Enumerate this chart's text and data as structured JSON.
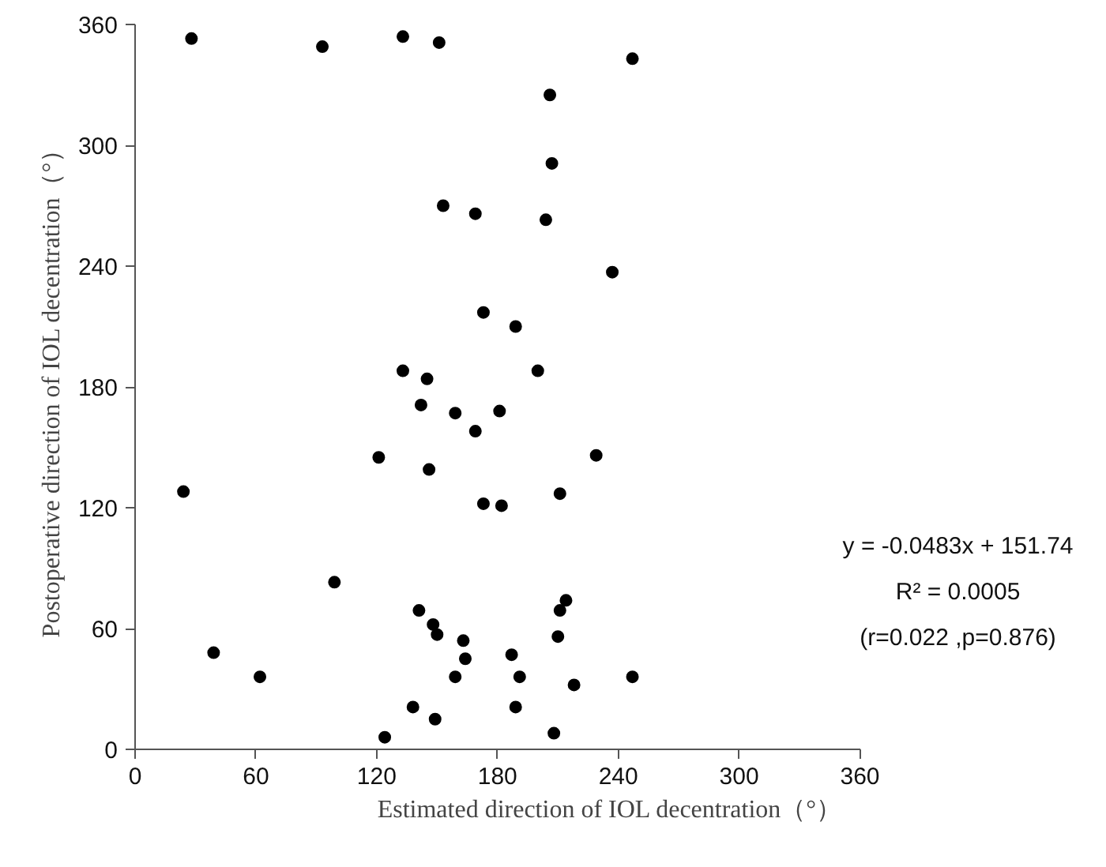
{
  "chart_data": {
    "type": "scatter",
    "xlabel": "Estimated direction of IOL decentration（°）",
    "ylabel": "Postoperative direction of IOL decentration（°）",
    "xlim": [
      0,
      360
    ],
    "ylim": [
      0,
      360
    ],
    "xticks": [
      0,
      60,
      120,
      180,
      240,
      300,
      360
    ],
    "yticks": [
      0,
      60,
      120,
      180,
      240,
      300,
      360
    ],
    "grid": false,
    "marker": "circle",
    "annotations": [
      "y = -0.0483x + 151.74",
      "R² = 0.0005",
      "(r=0.022 ,p=0.876)"
    ],
    "series": [
      {
        "color": "#000000",
        "x": [
          28,
          93,
          133,
          151,
          247,
          206,
          207,
          153,
          169,
          204,
          237,
          173,
          189,
          133,
          145,
          200,
          142,
          159,
          181,
          169,
          121,
          229,
          146,
          24,
          211,
          173,
          182,
          99,
          141,
          214,
          211,
          148,
          150,
          163,
          210,
          39,
          164,
          187,
          62,
          159,
          191,
          247,
          218,
          138,
          189,
          149,
          124,
          208
        ],
        "values": [
          353,
          349,
          354,
          351,
          343,
          325,
          291,
          270,
          266,
          263,
          237,
          217,
          210,
          188,
          184,
          188,
          171,
          167,
          168,
          158,
          145,
          146,
          139,
          128,
          127,
          122,
          121,
          83,
          69,
          74,
          69,
          62,
          57,
          54,
          56,
          48,
          45,
          47,
          36,
          36,
          36,
          36,
          32,
          21,
          21,
          15,
          6,
          8
        ]
      }
    ]
  }
}
